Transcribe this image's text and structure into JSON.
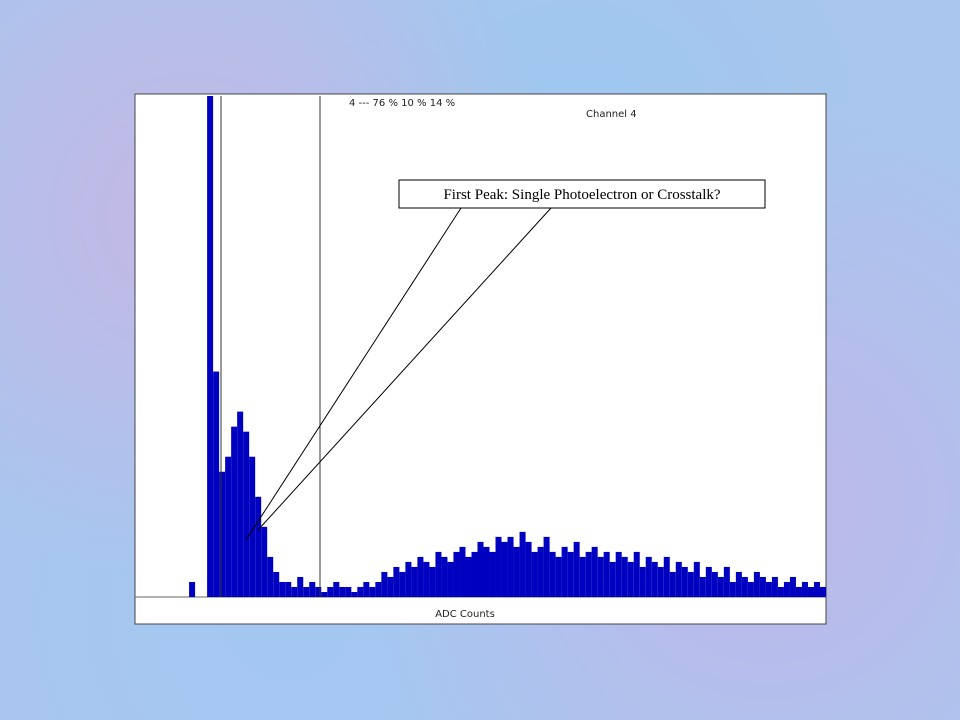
{
  "chart_data": {
    "type": "histogram",
    "header": "4 --- 76 % 10 % 14 %",
    "title": "Channel 4",
    "xlabel": "ADC Counts",
    "annotation": "First Peak: Single Photoelectron or Crosstalk?",
    "color": "#0000c0",
    "ylim": [
      0,
      100
    ],
    "values": [
      0,
      0,
      0,
      0,
      0,
      0,
      0,
      0,
      0,
      3,
      0,
      0,
      100,
      45,
      25,
      28,
      34,
      37,
      33,
      28,
      20,
      14,
      8,
      5,
      3,
      3,
      2,
      4,
      2,
      3,
      2,
      1,
      2,
      3,
      2,
      2,
      1,
      2,
      3,
      2,
      3,
      5,
      4,
      6,
      5,
      7,
      6,
      8,
      7,
      6,
      9,
      8,
      7,
      9,
      10,
      8,
      9,
      11,
      10,
      9,
      12,
      11,
      12,
      10,
      13,
      11,
      9,
      10,
      12,
      9,
      8,
      10,
      9,
      11,
      8,
      9,
      10,
      8,
      9,
      7,
      9,
      8,
      7,
      9,
      6,
      8,
      7,
      6,
      8,
      5,
      7,
      6,
      5,
      7,
      4,
      6,
      5,
      4,
      6,
      3,
      5,
      4,
      3,
      5,
      4,
      3,
      4,
      2,
      3,
      4,
      2,
      3,
      2,
      3,
      2
    ]
  }
}
